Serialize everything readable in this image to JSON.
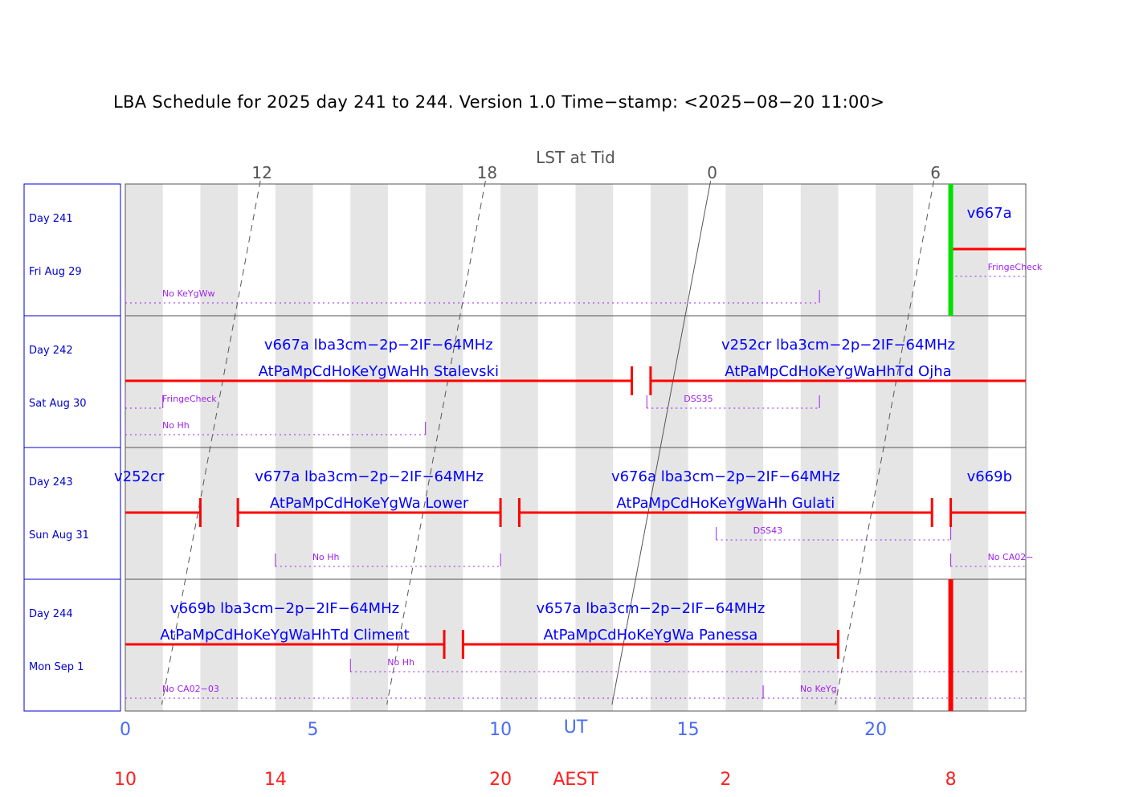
{
  "title": "LBA Schedule for 2025 day 241 to 244. Version 1.0 Time−stamp: <2025−08−20 11:00>",
  "colors": {
    "project": "#0000ff",
    "bar": "#ff0000",
    "note": "#a020f0",
    "shade": "#e5e5e5",
    "now": "#00e000",
    "ut_axis": "#4a6cf7",
    "aest_axis": "#ff2020",
    "frame": "#0000cc"
  },
  "chart_data": {
    "type": "gantt",
    "x_range": [
      0,
      24
    ],
    "x_unit": "UT hours",
    "days": [
      {
        "day_label": "Day 241",
        "date_label": "Fri Aug 29"
      },
      {
        "day_label": "Day 242",
        "date_label": "Sat Aug 30"
      },
      {
        "day_label": "Day 243",
        "date_label": "Sun Aug 31"
      },
      {
        "day_label": "Day 244",
        "date_label": "Mon Sep 1"
      }
    ],
    "experiments": [
      {
        "row": 0,
        "start": 22.0,
        "end": 24,
        "name": "v667a",
        "line2": ""
      },
      {
        "row": 1,
        "start": 0,
        "end": 13.5,
        "name": "v667a lba3cm−2p−2IF−64MHz",
        "line2": "AtPaMpCdHoKeYgWaHh Stalevski"
      },
      {
        "row": 1,
        "start": 14.0,
        "end": 24,
        "name": "v252cr lba3cm−2p−2IF−64MHz",
        "line2": "AtPaMpCdHoKeYgWaHhTd Ojha"
      },
      {
        "row": 2,
        "start": 0,
        "end": 2.0,
        "name": "v252cr",
        "line2": ""
      },
      {
        "row": 2,
        "start": 3.0,
        "end": 10.0,
        "name": "v677a lba3cm−2p−2IF−64MHz",
        "line2": "AtPaMpCdHoKeYgWa Lower"
      },
      {
        "row": 2,
        "start": 10.5,
        "end": 21.5,
        "name": "v676a lba3cm−2p−2IF−64MHz",
        "line2": "AtPaMpCdHoKeYgWaHh Gulati"
      },
      {
        "row": 2,
        "start": 22.0,
        "end": 24,
        "name": "v669b",
        "line2": ""
      },
      {
        "row": 3,
        "start": 0,
        "end": 8.5,
        "name": "v669b lba3cm−2p−2IF−64MHz",
        "line2": "AtPaMpCdHoKeYgWaHhTd Climent"
      },
      {
        "row": 3,
        "start": 9.0,
        "end": 19.0,
        "name": "v657a lba3cm−2p−2IF−64MHz",
        "line2": "AtPaMpCdHoKeYgWa Panessa"
      }
    ],
    "notes": [
      {
        "row": 0,
        "start": 0,
        "end": 18.5,
        "text": "No KeYgWw",
        "lane": 1
      },
      {
        "row": 0,
        "start": 22.0,
        "end": 24,
        "text": "FringeCheck",
        "lane": 0
      },
      {
        "row": 1,
        "start": 0,
        "end": 1.0,
        "text": "FringeCheck",
        "lane": 0
      },
      {
        "row": 1,
        "start": 0,
        "end": 8.0,
        "text": "No Hh",
        "lane": 1
      },
      {
        "row": 1,
        "start": 13.9,
        "end": 18.5,
        "text": "DSS35",
        "lane": 0
      },
      {
        "row": 2,
        "start": 15.75,
        "end": 22.0,
        "text": "DSS43",
        "lane": 0
      },
      {
        "row": 2,
        "start": 4.0,
        "end": 10.0,
        "text": "No Hh",
        "lane": 1
      },
      {
        "row": 2,
        "start": 22.0,
        "end": 24,
        "text": "No CA02−",
        "lane": 1
      },
      {
        "row": 3,
        "start": 6.0,
        "end": 24,
        "text": "No Hh",
        "lane": 0
      },
      {
        "row": 3,
        "start": 0,
        "end": 17.0,
        "text": "No CA02−03",
        "lane": 1
      },
      {
        "row": 3,
        "start": 17.0,
        "end": 24,
        "text": "No KeYg",
        "lane": 1
      }
    ],
    "now_marker_ut": 22.0,
    "lst": {
      "label": "LST at Tid",
      "ticks": [
        {
          "label": "12",
          "ut": 3.6
        },
        {
          "label": "18",
          "ut": 9.6
        },
        {
          "label": "0",
          "ut": 15.6
        },
        {
          "label": "6",
          "ut": 21.55
        }
      ],
      "drift_hours_per_day": -0.0657
    },
    "ut_axis": {
      "label": "UT",
      "label_position": 12,
      "ticks": [
        0,
        5,
        10,
        15,
        20
      ]
    },
    "aest_axis": {
      "label": "AEST",
      "label_position": 12,
      "ticks": [
        {
          "label": "10",
          "ut": 0
        },
        {
          "label": "14",
          "ut": 4
        },
        {
          "label": "20",
          "ut": 10
        },
        {
          "label": "2",
          "ut": 16
        },
        {
          "label": "8",
          "ut": 22
        }
      ]
    }
  }
}
